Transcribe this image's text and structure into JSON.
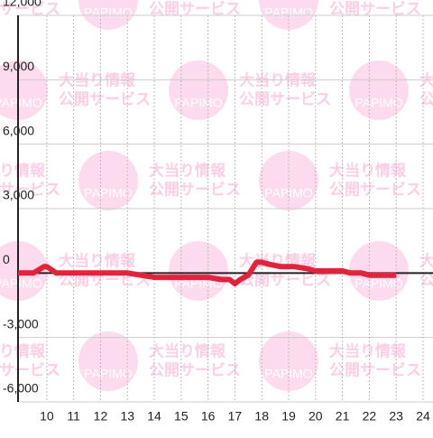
{
  "chart_data": {
    "type": "line",
    "watermark": {
      "line1": "大当り情報",
      "line2": "公開サービス",
      "logo": "PAPIMO"
    },
    "xlim": [
      8.93,
      24.37
    ],
    "xticks": [
      10,
      11,
      12,
      13,
      14,
      15,
      16,
      17,
      18,
      19,
      20,
      21,
      22,
      23,
      24
    ],
    "ylim": [
      -6000,
      12000
    ],
    "yticks": [
      {
        "value": -6000,
        "label": "-6,000"
      },
      {
        "value": -3000,
        "label": "-3,000"
      },
      0,
      {
        "value": 3000,
        "label": "3,000"
      },
      {
        "value": 6000,
        "label": "6,000"
      },
      {
        "value": 9000,
        "label": "9,000"
      },
      {
        "value": 12000,
        "label": "12,000"
      }
    ],
    "grid": true,
    "series": [
      {
        "color": "#e8203a",
        "x": [
          8.93,
          9.5,
          9.9,
          10.0,
          10.35,
          11,
          13,
          13.5,
          14,
          15,
          16,
          16.5,
          16.8,
          17.0,
          17.2,
          17.5,
          17.8,
          18.0,
          18.3,
          18.7,
          19.2,
          19.7,
          20,
          21,
          21.3,
          21.7,
          22,
          22.5,
          23
        ],
        "values": [
          0,
          0,
          300,
          300,
          0,
          0,
          0,
          -100,
          -200,
          -200,
          -200,
          -300,
          -300,
          -500,
          -300,
          -100,
          500,
          500,
          400,
          300,
          300,
          200,
          100,
          100,
          0,
          0,
          -100,
          -100,
          -100
        ]
      }
    ]
  }
}
